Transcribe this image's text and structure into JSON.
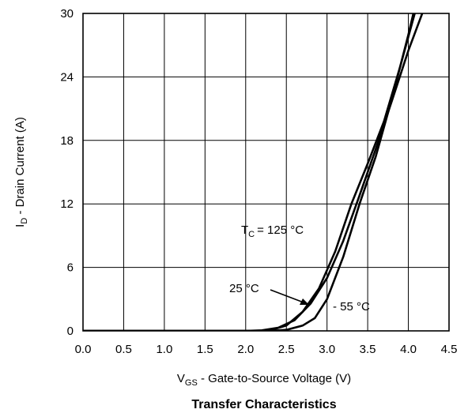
{
  "chart_data": {
    "type": "line",
    "title": "",
    "caption": "Transfer Characteristics",
    "xlabel": {
      "prefix": "V",
      "sub": "GS",
      "rest": " - Gate-to-Source Voltage (V)"
    },
    "ylabel": {
      "prefix": "I",
      "sub": "D",
      "rest": " - Drain Current (A)"
    },
    "xlim": [
      0,
      4.5
    ],
    "ylim": [
      0,
      30
    ],
    "grid": true,
    "x_ticks": [
      "0.0",
      "0.5",
      "1.0",
      "1.5",
      "2.0",
      "2.5",
      "3.0",
      "3.5",
      "4.0",
      "4.5"
    ],
    "y_ticks": [
      "0",
      "6",
      "12",
      "18",
      "24",
      "30"
    ],
    "series": [
      {
        "name": "125 °C",
        "points": [
          [
            0.0,
            0.0
          ],
          [
            2.0,
            0.0
          ],
          [
            2.2,
            0.05
          ],
          [
            2.4,
            0.3
          ],
          [
            2.6,
            1.0
          ],
          [
            2.8,
            2.6
          ],
          [
            3.0,
            5.0
          ],
          [
            3.2,
            8.5
          ],
          [
            3.4,
            12.8
          ],
          [
            3.6,
            17.2
          ],
          [
            3.8,
            21.8
          ],
          [
            4.0,
            26.5
          ],
          [
            4.2,
            30.6
          ]
        ]
      },
      {
        "name": "25 °C",
        "points": [
          [
            0.0,
            0.0
          ],
          [
            2.1,
            0.0
          ],
          [
            2.3,
            0.05
          ],
          [
            2.5,
            0.5
          ],
          [
            2.7,
            1.8
          ],
          [
            2.9,
            4.0
          ],
          [
            3.1,
            7.5
          ],
          [
            3.3,
            12.0
          ],
          [
            3.5,
            15.8
          ],
          [
            3.7,
            19.8
          ],
          [
            3.9,
            25.0
          ],
          [
            4.1,
            30.6
          ]
        ]
      },
      {
        "name": "- 55 °C",
        "points": [
          [
            0.0,
            0.0
          ],
          [
            2.3,
            0.0
          ],
          [
            2.5,
            0.1
          ],
          [
            2.7,
            0.5
          ],
          [
            2.85,
            1.2
          ],
          [
            3.0,
            3.0
          ],
          [
            3.2,
            7.0
          ],
          [
            3.4,
            12.0
          ],
          [
            3.6,
            16.5
          ],
          [
            3.8,
            22.0
          ],
          [
            4.0,
            28.0
          ],
          [
            4.08,
            30.6
          ]
        ]
      }
    ],
    "annotations": {
      "tc_label": "= 125 °C",
      "tc_prefix": "T",
      "tc_sub": "C",
      "label_25": "25 °C",
      "label_55": "- 55 °C"
    }
  }
}
